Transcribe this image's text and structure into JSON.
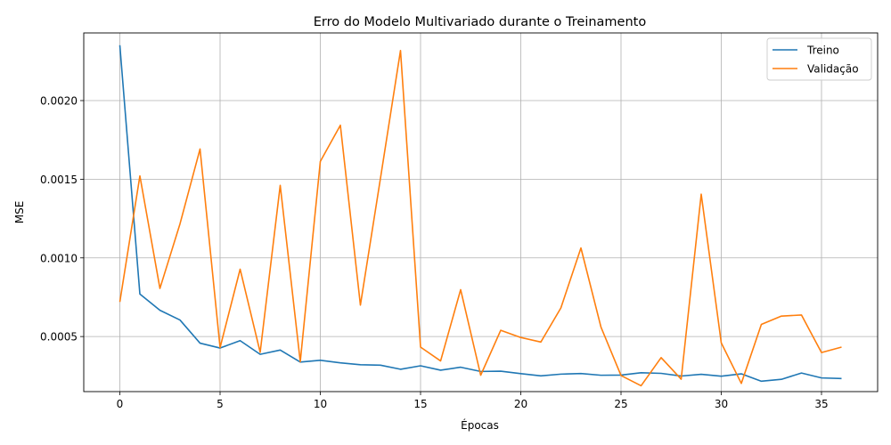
{
  "chart_data": {
    "type": "line",
    "title": "Erro do Modelo Multivariado durante o Treinamento",
    "xlabel": "Épocas",
    "ylabel": "MSE",
    "xlim": [
      -1.8,
      37.8
    ],
    "ylim": [
      0.00015,
      0.00243
    ],
    "xticks": [
      0,
      5,
      10,
      15,
      20,
      25,
      30,
      35
    ],
    "xtick_labels": [
      "0",
      "5",
      "10",
      "15",
      "20",
      "25",
      "30",
      "35"
    ],
    "yticks": [
      0.0005,
      0.001,
      0.0015,
      0.002
    ],
    "ytick_labels": [
      "0.0005",
      "0.0010",
      "0.0015",
      "0.0020"
    ],
    "grid": true,
    "legend_position": "top-right",
    "x": [
      0,
      1,
      2,
      3,
      4,
      5,
      6,
      7,
      8,
      9,
      10,
      11,
      12,
      13,
      14,
      15,
      16,
      17,
      18,
      19,
      20,
      21,
      22,
      23,
      24,
      25,
      26,
      27,
      28,
      29,
      30,
      31,
      32,
      33,
      34,
      35,
      36
    ],
    "series": [
      {
        "name": "Treino",
        "color": "#1f77b4",
        "values": [
          0.002352,
          0.00077,
          0.000667,
          0.000605,
          0.000458,
          0.000427,
          0.000474,
          0.000387,
          0.000414,
          0.000338,
          0.000349,
          0.000333,
          0.000321,
          0.000318,
          0.000292,
          0.000314,
          0.000286,
          0.000305,
          0.000278,
          0.00028,
          0.000264,
          0.00025,
          0.000261,
          0.000265,
          0.000254,
          0.000255,
          0.00027,
          0.000266,
          0.000249,
          0.00026,
          0.000248,
          0.000263,
          0.000216,
          0.000228,
          0.000268,
          0.000237,
          0.000233
        ]
      },
      {
        "name": "Validação",
        "color": "#ff7f0e",
        "values": [
          0.00072,
          0.001521,
          0.000806,
          0.001216,
          0.001692,
          0.00043,
          0.000928,
          0.0004,
          0.001461,
          0.00034,
          0.001613,
          0.001843,
          0.0007,
          0.001506,
          0.002318,
          0.000433,
          0.000345,
          0.000798,
          0.000254,
          0.00054,
          0.000494,
          0.000465,
          0.000682,
          0.001063,
          0.00056,
          0.000252,
          0.000187,
          0.000366,
          0.000229,
          0.001405,
          0.00046,
          0.000202,
          0.000577,
          0.00063,
          0.000637,
          0.000398,
          0.000433
        ]
      }
    ]
  }
}
